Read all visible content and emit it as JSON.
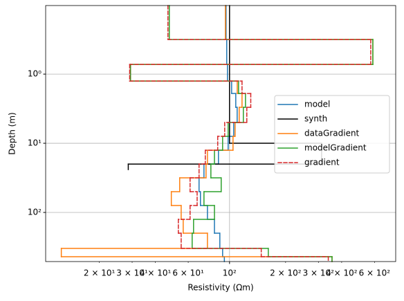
{
  "chart_data": {
    "type": "step",
    "xlabel": "Resistivity (Ωm)",
    "ylabel": "Depth (m)",
    "xscale": "log",
    "yscale": "log",
    "y_inverted": true,
    "xlim": [
      10.3,
      780
    ],
    "ylim": [
      0.102,
      513
    ],
    "xticks": [
      {
        "value": 100,
        "label": "10²"
      }
    ],
    "xminorticks": [
      {
        "value": 20,
        "label": "2 × 10¹"
      },
      {
        "value": 30,
        "label": "3 × 10¹"
      },
      {
        "value": 40,
        "label": "4 × 10¹"
      },
      {
        "value": 60,
        "label": "6 × 10¹"
      },
      {
        "value": 200,
        "label": "2 × 10²"
      },
      {
        "value": 300,
        "label": "3 × 10²"
      },
      {
        "value": 400,
        "label": "4 × 10²"
      },
      {
        "value": 600,
        "label": "6 × 10²"
      }
    ],
    "yticks": [
      {
        "value": 1,
        "label": "10⁰"
      },
      {
        "value": 10,
        "label": "10¹"
      },
      {
        "value": 100,
        "label": "10²"
      }
    ],
    "grid": true,
    "legend": "right",
    "series": [
      {
        "name": "model",
        "color": "#1f77b4",
        "dashed": false,
        "depths": [
          0.102,
          0.316,
          0.724,
          1.259,
          1.905,
          3.02,
          5.01,
          7.94,
          12.6,
          19.95,
          31.6,
          50.1,
          79.4,
          125.9,
          199.5,
          331,
          437,
          513
        ],
        "values": [
          95.8,
          96.6,
          97.5,
          102.6,
          108.0,
          109.9,
          105.3,
          98.3,
          87.2,
          72.9,
          68.6,
          69.8,
          76.1,
          83.0,
          88.7,
          91.8,
          93.8
        ]
      },
      {
        "name": "synth",
        "color": "#000000",
        "dashed": false,
        "depths": [
          0.102,
          10,
          20,
          24
        ],
        "values": [
          100,
          312,
          28.6
        ]
      },
      {
        "name": "dataGradient",
        "color": "#ff7f0e",
        "dashed": false,
        "depths": [
          0.102,
          0.316,
          0.724,
          1.259,
          1.905,
          3.02,
          5.01,
          7.94,
          12.6,
          19.95,
          31.6,
          50.1,
          79.4,
          125.9,
          199.5,
          331,
          437,
          513
        ],
        "values": [
          95,
          588,
          29.4,
          110,
          116.7,
          112.7,
          107.1,
          104.4,
          76.1,
          74.8,
          54.0,
          48.7,
          55.0,
          56.4,
          76.1,
          12.5,
          355
        ]
      },
      {
        "name": "modelGradient",
        "color": "#2ca02c",
        "dashed": false,
        "depths": [
          0.102,
          0.316,
          0.724,
          1.259,
          1.905,
          3.02,
          5.01,
          7.94,
          12.6,
          19.95,
          31.6,
          50.1,
          79.4,
          125.9,
          199.5,
          331,
          437,
          513
        ],
        "values": [
          47.5,
          588,
          29.4,
          111.8,
          121.8,
          118.6,
          98.3,
          91.8,
          83.0,
          79.4,
          90.2,
          72.9,
          83.0,
          64.1,
          63.0,
          161.5,
          355
        ]
      },
      {
        "name": "gradient",
        "color": "#d62728",
        "dashed": true,
        "depths": [
          0.102,
          0.316,
          0.724,
          1.259,
          1.905,
          3.02,
          5.01,
          7.94,
          12.6,
          19.95,
          31.6,
          50.1,
          79.4,
          125.9,
          199.5,
          331,
          437,
          513
        ],
        "values": [
          46.7,
          573,
          29.1,
          116.7,
          130,
          123.8,
          94.2,
          86.4,
          74.1,
          68.6,
          61.4,
          67.0,
          61.4,
          53.1,
          55.0,
          148,
          339
        ]
      }
    ]
  }
}
